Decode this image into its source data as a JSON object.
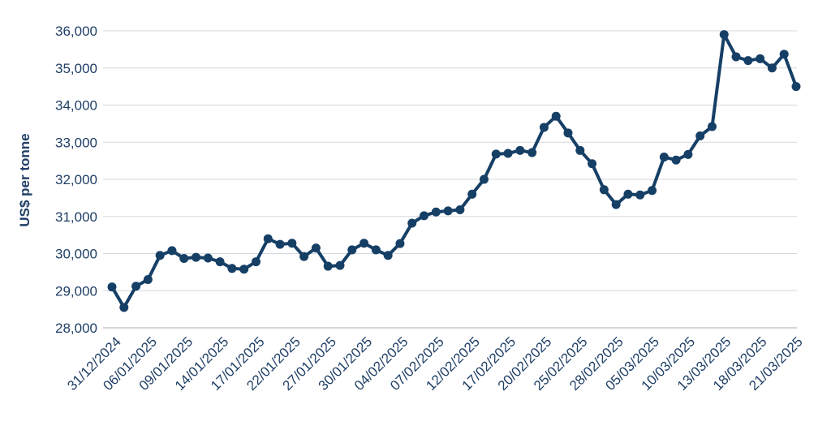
{
  "chart_data": {
    "type": "line",
    "title": "",
    "xlabel": "",
    "ylabel": "US$ per tonne",
    "ylim": [
      28000,
      36000
    ],
    "yticks": [
      28000,
      29000,
      30000,
      31000,
      32000,
      33000,
      34000,
      35000,
      36000
    ],
    "ytick_labels": [
      "28,000",
      "29,000",
      "30,000",
      "31,000",
      "32,000",
      "33,000",
      "34,000",
      "35,000",
      "36,000"
    ],
    "grid": "horizontal",
    "legend": "none",
    "line_color": "#163f66",
    "xtick_labels": [
      "31/12/2024",
      "06/01/2025",
      "09/01/2025",
      "14/01/2025",
      "17/01/2025",
      "22/01/2025",
      "27/01/2025",
      "30/01/2025",
      "04/02/2025",
      "07/02/2025",
      "12/02/2025",
      "17/02/2025",
      "20/02/2025",
      "25/02/2025",
      "28/02/2025",
      "05/03/2025",
      "10/03/2025",
      "13/03/2025",
      "18/03/2025",
      "21/03/2025"
    ],
    "series": [
      {
        "values": [
          29100,
          28550,
          29120,
          29300,
          29950,
          30080,
          29870,
          29900,
          29880,
          29780,
          29600,
          29580,
          29780,
          30400,
          30250,
          30280,
          29920,
          30150,
          29660,
          29680,
          30100,
          30280,
          30100,
          29950,
          30270,
          30820,
          31020,
          31120,
          31150,
          31180,
          31600,
          32000,
          32680,
          32700,
          32780,
          32720,
          33400,
          33700,
          33250,
          32780,
          32420,
          31720,
          31320,
          31600,
          31580,
          31700,
          32600,
          32520,
          32670,
          33170,
          33420,
          35900,
          35300,
          35200,
          35250,
          35000,
          35370,
          34500
        ]
      }
    ]
  }
}
